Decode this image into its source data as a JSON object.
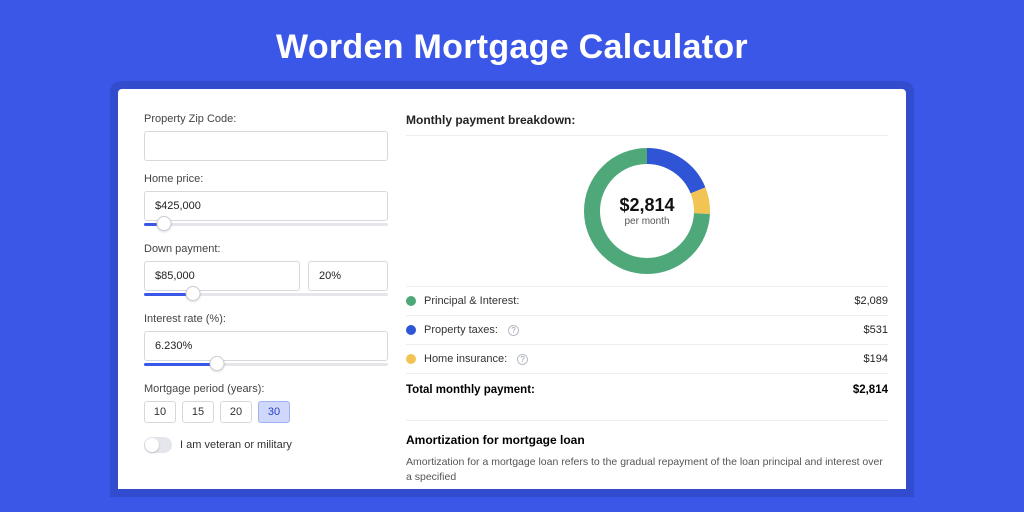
{
  "page": {
    "title": "Worden Mortgage Calculator",
    "background_color": "#3b57e8"
  },
  "form": {
    "zip": {
      "label": "Property Zip Code:",
      "value": ""
    },
    "home_price": {
      "label": "Home price:",
      "value": "$425,000",
      "slider_percent": 8
    },
    "down_payment": {
      "label": "Down payment:",
      "amount": "$85,000",
      "percent": "20%",
      "slider_percent": 20
    },
    "interest_rate": {
      "label": "Interest rate (%):",
      "value": "6.230%",
      "slider_percent": 30
    },
    "period": {
      "label": "Mortgage period (years):",
      "options": [
        "10",
        "15",
        "20",
        "30"
      ],
      "selected": "30"
    },
    "veteran": {
      "label": "I am veteran or military",
      "checked": false
    }
  },
  "breakdown": {
    "title": "Monthly payment breakdown:",
    "center_amount": "$2,814",
    "center_sub": "per month",
    "items": [
      {
        "label": "Principal & Interest:",
        "value": "$2,089",
        "color": "#4fa87a",
        "percent": 74.25,
        "info": false
      },
      {
        "label": "Property taxes:",
        "value": "$531",
        "color": "#2f54d6",
        "percent": 18.87,
        "info": true
      },
      {
        "label": "Home insurance:",
        "value": "$194",
        "color": "#f1c453",
        "percent": 6.88,
        "info": true
      }
    ],
    "total_label": "Total monthly payment:",
    "total_value": "$2,814",
    "donut": {
      "stroke_width": 16,
      "radius": 55,
      "bg": "#ffffff"
    }
  },
  "amortization": {
    "title": "Amortization for mortgage loan",
    "text": "Amortization for a mortgage loan refers to the gradual repayment of the loan principal and interest over a specified"
  }
}
